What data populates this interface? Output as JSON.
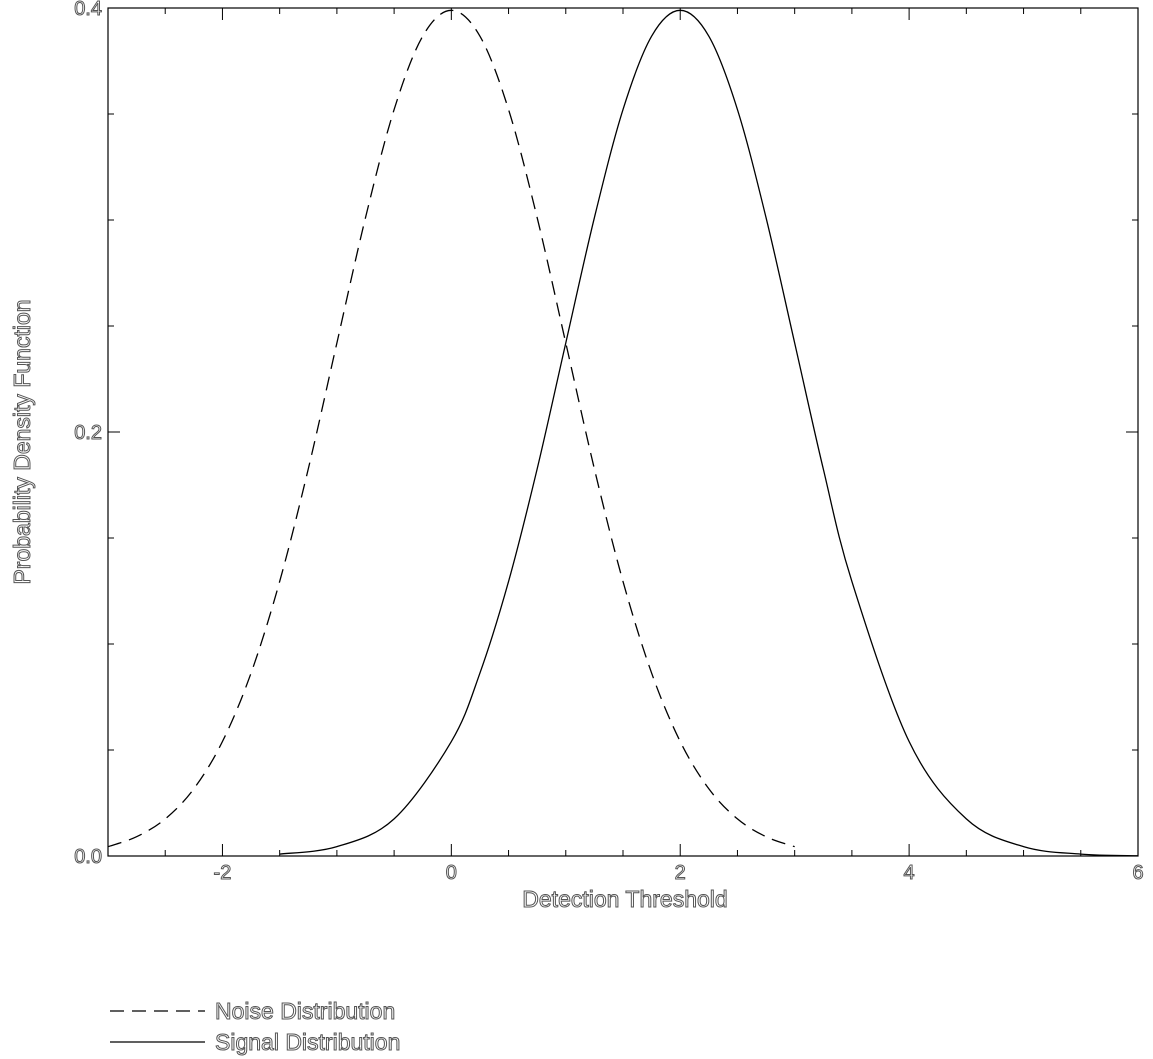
{
  "chart_data": {
    "type": "line",
    "title": "",
    "xlabel": "Detection Threshold",
    "ylabel": "Probability Density Function",
    "xlim": [
      -3,
      6
    ],
    "ylim": [
      0,
      0.4
    ],
    "xticks": [
      -2,
      0,
      2,
      4,
      6
    ],
    "xtick_labels": [
      "-2",
      "0",
      "2",
      "4",
      "6"
    ],
    "yticks": [
      0.0,
      0.2,
      0.4
    ],
    "ytick_labels": [
      "0.0",
      "0.2",
      "0.4"
    ],
    "grid": false,
    "legend_position": "bottom-left",
    "series": [
      {
        "name": "Noise Distribution",
        "style": "dashed",
        "color": "#000000",
        "x": [
          -3.0,
          -2.75,
          -2.5,
          -2.25,
          -2.0,
          -1.75,
          -1.5,
          -1.25,
          -1.0,
          -0.75,
          -0.5,
          -0.25,
          0.0,
          0.25,
          0.5,
          0.75,
          1.0,
          1.25,
          1.5,
          1.75,
          2.0,
          2.25,
          2.5,
          2.75,
          3.0
        ],
        "y": [
          0.0044,
          0.0091,
          0.0175,
          0.0317,
          0.054,
          0.0863,
          0.1295,
          0.1826,
          0.242,
          0.3011,
          0.3521,
          0.3867,
          0.3989,
          0.3867,
          0.3521,
          0.3011,
          0.242,
          0.1826,
          0.1295,
          0.0863,
          0.054,
          0.0317,
          0.0175,
          0.0091,
          0.0044
        ]
      },
      {
        "name": "Signal Distribution",
        "style": "solid",
        "color": "#000000",
        "x": [
          -1.5,
          -1.0,
          -0.5,
          0.0,
          0.25,
          0.5,
          0.75,
          1.0,
          1.25,
          1.5,
          1.75,
          2.0,
          2.25,
          2.5,
          2.75,
          3.0,
          3.25,
          3.5,
          4.0,
          4.5,
          5.0,
          5.5,
          6.0
        ],
        "y": [
          0.0009,
          0.0044,
          0.0175,
          0.054,
          0.0863,
          0.1295,
          0.1826,
          0.242,
          0.3011,
          0.3521,
          0.3867,
          0.3989,
          0.3867,
          0.3521,
          0.3011,
          0.242,
          0.1826,
          0.1295,
          0.054,
          0.0175,
          0.0044,
          0.0009,
          0.0001
        ]
      }
    ]
  }
}
